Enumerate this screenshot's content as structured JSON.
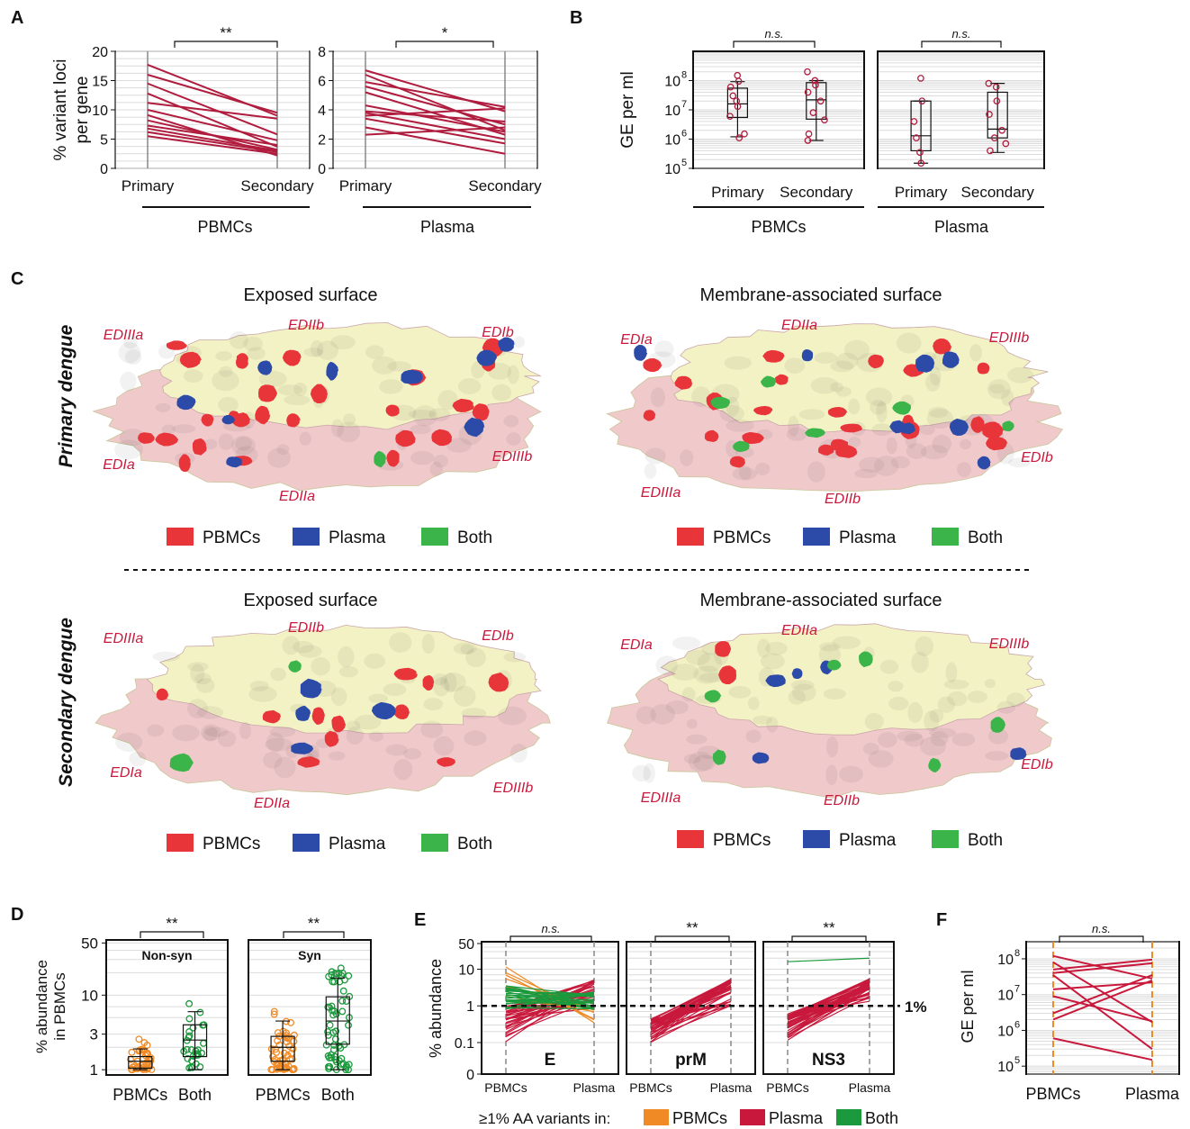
{
  "panel_labels": [
    "A",
    "B",
    "C",
    "D",
    "E",
    "F"
  ],
  "panel_a": {
    "ylabel_lines": [
      "% variant loci",
      "per gene"
    ],
    "group_labels": [
      "PBMCs",
      "Plasma"
    ],
    "x_tick_labels": [
      "Primary",
      "Secondary"
    ],
    "sig": [
      "**",
      "*"
    ]
  },
  "panel_b": {
    "ylabel": "GE per ml",
    "group_labels": [
      "PBMCs",
      "Plasma"
    ],
    "x_tick_labels": [
      "Primary",
      "Secondary"
    ],
    "sig": [
      "n.s.",
      "n.s."
    ]
  },
  "panel_c": {
    "row_labels": [
      "Primary dengue",
      "Secondary dengue"
    ],
    "view_titles": [
      "Exposed surface",
      "Membrane-associated surface"
    ],
    "domains_exposed": [
      "EDIIIa",
      "EDIIb",
      "EDIb",
      "EDIa",
      "EDIIa",
      "EDIIIb"
    ],
    "domains_membrane": [
      "EDIa",
      "EDIIa",
      "EDIIIb",
      "EDIIIa",
      "EDIIb",
      "EDIb"
    ],
    "legend": [
      "PBMCs",
      "Plasma",
      "Both"
    ],
    "colors": {
      "PBMCs": "#e8353a",
      "Plasma": "#2c4aa8",
      "Both": "#3bb54a",
      "domain_1": "#f3f2c4",
      "domain_2": "#f0c9cb"
    }
  },
  "panel_d": {
    "ylabel_lines": [
      "% abundance",
      "in PBMCs"
    ],
    "x_tick_labels": [
      "PBMCs",
      "Both"
    ],
    "subpanel_titles": [
      "Non-syn",
      "Syn"
    ],
    "sig": [
      "**",
      "**"
    ]
  },
  "panel_e": {
    "ylabel": "% abundance",
    "subpanel_titles": [
      "E",
      "prM",
      "NS3"
    ],
    "x_tick_labels": [
      "PBMCs",
      "Plasma"
    ],
    "sig": [
      "n.s.",
      "**",
      "**"
    ],
    "threshold_label": "1%",
    "legend_prefix": "≥1% AA variants in:",
    "legend": [
      "PBMCs",
      "Plasma",
      "Both"
    ]
  },
  "panel_f": {
    "ylabel": "GE per ml",
    "x_tick_labels": [
      "PBMCs",
      "Plasma"
    ],
    "sig": "n.s."
  },
  "colors": {
    "line": "#b01c3e",
    "box_point": "#b01c3e",
    "pbmc": "#f08a24",
    "plasma": "#c8193c",
    "both": "#1a9a3c"
  },
  "chart_data": [
    {
      "type": "line",
      "panel": "A-PBMCs",
      "x": [
        "Primary",
        "Secondary"
      ],
      "ylim": [
        0,
        20
      ],
      "yticks": [
        0,
        5,
        10,
        15,
        20
      ],
      "series": [
        {
          "values": [
            17.7,
            9.0
          ]
        },
        {
          "values": [
            16.0,
            9.5
          ]
        },
        {
          "values": [
            14.5,
            5.8
          ]
        },
        {
          "values": [
            12.8,
            3.7
          ]
        },
        {
          "values": [
            11.2,
            8.5
          ]
        },
        {
          "values": [
            10.0,
            4.8
          ]
        },
        {
          "values": [
            8.2,
            3.2
          ]
        },
        {
          "values": [
            7.3,
            4.0
          ]
        },
        {
          "values": [
            6.8,
            3.0
          ]
        },
        {
          "values": [
            6.2,
            2.8
          ]
        },
        {
          "values": [
            5.5,
            2.5
          ]
        },
        {
          "values": [
            9.1,
            2.2
          ]
        }
      ]
    },
    {
      "type": "line",
      "panel": "A-Plasma",
      "x": [
        "Primary",
        "Secondary"
      ],
      "ylim": [
        0,
        8
      ],
      "yticks": [
        0,
        2,
        4,
        6,
        8
      ],
      "series": [
        {
          "values": [
            6.7,
            3.9
          ]
        },
        {
          "values": [
            6.4,
            2.6
          ]
        },
        {
          "values": [
            5.9,
            4.2
          ]
        },
        {
          "values": [
            5.6,
            3.0
          ]
        },
        {
          "values": [
            5.2,
            2.3
          ]
        },
        {
          "values": [
            4.3,
            2.5
          ]
        },
        {
          "values": [
            3.8,
            2.0
          ]
        },
        {
          "values": [
            3.6,
            4.1
          ]
        },
        {
          "values": [
            3.4,
            1.7
          ]
        },
        {
          "values": [
            2.8,
            1.0
          ]
        },
        {
          "values": [
            2.3,
            2.8
          ]
        },
        {
          "values": [
            3.9,
            3.2
          ]
        }
      ]
    },
    {
      "type": "scatter",
      "panel": "B-PBMCs",
      "y_scale": "log",
      "ylim": [
        100000,
        1000000000
      ],
      "yticks_exp": [
        5,
        6,
        7,
        8
      ],
      "categories": [
        "Primary",
        "Secondary"
      ],
      "boxes": [
        {
          "min": 1200000,
          "q1": 5500000,
          "median": 16000000,
          "q3": 55000000,
          "max": 92000000
        },
        {
          "min": 900000,
          "q1": 4800000,
          "median": 22000000,
          "q3": 85000000,
          "max": 100000000
        }
      ],
      "points": [
        [
          150000000,
          95000000,
          60000000,
          30000000,
          20000000,
          13000000,
          6000000,
          1500000,
          1100000
        ],
        [
          200000000,
          100000000,
          70000000,
          40000000,
          20000000,
          8000000,
          4500000,
          1500000,
          900000
        ]
      ]
    },
    {
      "type": "scatter",
      "panel": "B-Plasma",
      "y_scale": "log",
      "ylim": [
        100000,
        1000000000
      ],
      "yticks_exp": [
        5,
        6,
        7,
        8
      ],
      "categories": [
        "Primary",
        "Secondary"
      ],
      "boxes": [
        {
          "min": 150000,
          "q1": 400000,
          "median": 1300000,
          "q3": 20000000,
          "max": 20000000
        },
        {
          "min": 350000,
          "q1": 1100000,
          "median": 2200000,
          "q3": 40000000,
          "max": 80000000
        }
      ],
      "points": [
        [
          120000000,
          20000000,
          4000000,
          1100000,
          350000,
          150000
        ],
        [
          80000000,
          60000000,
          20000000,
          7000000,
          2000000,
          1100000,
          700000,
          400000
        ]
      ]
    },
    {
      "type": "scatter",
      "panel": "D-Non-syn",
      "y_scale": "log",
      "ylim": [
        0.85,
        55
      ],
      "yticks": [
        1,
        3,
        10,
        50
      ],
      "categories": [
        "PBMCs",
        "Both"
      ],
      "boxes": [
        {
          "min": 1.0,
          "q1": 1.05,
          "median": 1.3,
          "q3": 1.5,
          "max": 1.9
        },
        {
          "min": 1.0,
          "q1": 1.5,
          "median": 2.5,
          "q3": 4.0,
          "max": 6.0
        }
      ]
    },
    {
      "type": "scatter",
      "panel": "D-Syn",
      "y_scale": "log",
      "ylim": [
        0.85,
        55
      ],
      "yticks": [
        1,
        3,
        10,
        50
      ],
      "categories": [
        "PBMCs",
        "Both"
      ],
      "boxes": [
        {
          "min": 1.0,
          "q1": 1.3,
          "median": 2.0,
          "q3": 2.8,
          "max": 4.5
        },
        {
          "min": 1.0,
          "q1": 2.2,
          "median": 4.5,
          "q3": 9.5,
          "max": 17.0
        }
      ]
    },
    {
      "type": "line",
      "panel": "E",
      "x": [
        "PBMCs",
        "Plasma"
      ],
      "y_scale": "log",
      "yticks": [
        0,
        0.1,
        1,
        10,
        50
      ],
      "threshold": 1
    },
    {
      "type": "line",
      "panel": "F",
      "x": [
        "PBMCs",
        "Plasma"
      ],
      "y_scale": "log",
      "ylim": [
        60000,
        300000000
      ],
      "yticks_exp": [
        5,
        6,
        7,
        8
      ],
      "series": [
        {
          "values": [
            120000000,
            28000000
          ]
        },
        {
          "values": [
            80000000,
            1700000
          ]
        },
        {
          "values": [
            50000000,
            95000000
          ]
        },
        {
          "values": [
            40000000,
            75000000
          ]
        },
        {
          "values": [
            35000000,
            300000
          ]
        },
        {
          "values": [
            14000000,
            22000000
          ]
        },
        {
          "values": [
            9000000,
            1800000
          ]
        },
        {
          "values": [
            3000000,
            35000000
          ]
        },
        {
          "values": [
            2000000,
            25000000
          ]
        },
        {
          "values": [
            600000,
            150000
          ]
        }
      ]
    }
  ]
}
